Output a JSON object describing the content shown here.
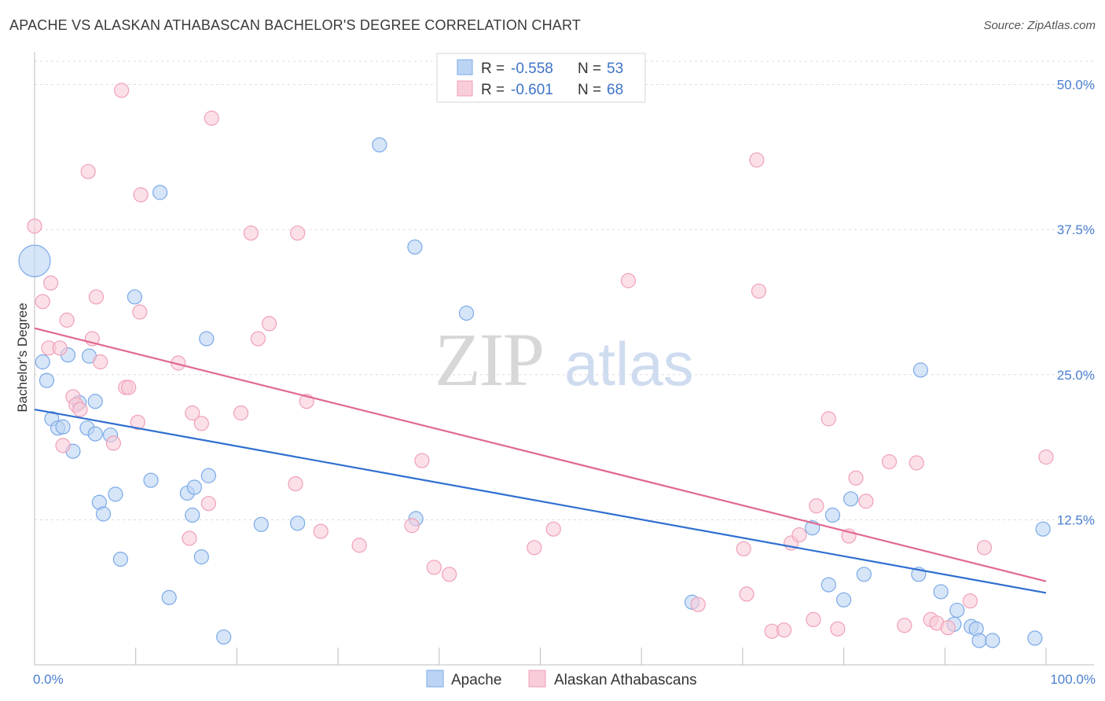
{
  "header": {
    "title": "APACHE VS ALASKAN ATHABASCAN BACHELOR'S DEGREE CORRELATION CHART",
    "source": "Source: ZipAtlas.com"
  },
  "watermark": {
    "zip": "ZIP",
    "atlas": "atlas"
  },
  "stats_legend": {
    "rows": [
      {
        "r_label": "R = ",
        "r_value": "-0.558",
        "n_label": "N = ",
        "n_value": "53"
      },
      {
        "r_label": "R = ",
        "r_value": "-0.601",
        "n_label": "N = ",
        "n_value": "68"
      }
    ]
  },
  "chart_data": {
    "type": "scatter",
    "xlabel": "",
    "ylabel": "Bachelor's Degree",
    "xlim": [
      0,
      100
    ],
    "ylim": [
      0,
      52
    ],
    "x_ticks": [
      {
        "value": 0,
        "label": "0.0%"
      },
      {
        "value": 100,
        "label": "100.0%"
      }
    ],
    "y_ticks": [
      {
        "value": 12.5,
        "label": "12.5%"
      },
      {
        "value": 25,
        "label": "25.0%"
      },
      {
        "value": 37.5,
        "label": "37.5%"
      },
      {
        "value": 50,
        "label": "50.0%"
      }
    ],
    "x_minor_ticks": [
      0,
      10,
      20,
      30,
      40,
      50,
      60,
      70,
      80,
      90,
      100
    ],
    "grid": "horizontal-dashed",
    "legend_position": "bottom-center",
    "series": [
      {
        "name": "Apache",
        "color": "#7aaae8",
        "fill": "#bcd4f4",
        "trend": {
          "x": [
            0,
            100
          ],
          "y": [
            22.0,
            6.2
          ],
          "color": "#2f6fd0"
        },
        "points": [
          {
            "x": 0.0,
            "y": 34.8,
            "big": true
          },
          {
            "x": 0.8,
            "y": 26.1
          },
          {
            "x": 1.2,
            "y": 24.5
          },
          {
            "x": 1.7,
            "y": 21.2
          },
          {
            "x": 2.3,
            "y": 20.4
          },
          {
            "x": 2.8,
            "y": 20.5
          },
          {
            "x": 3.3,
            "y": 26.7
          },
          {
            "x": 3.8,
            "y": 18.4
          },
          {
            "x": 4.4,
            "y": 22.6
          },
          {
            "x": 5.2,
            "y": 20.4
          },
          {
            "x": 5.4,
            "y": 26.6
          },
          {
            "x": 6.0,
            "y": 22.7
          },
          {
            "x": 6.0,
            "y": 19.9
          },
          {
            "x": 6.4,
            "y": 14.0
          },
          {
            "x": 6.8,
            "y": 13.0
          },
          {
            "x": 7.5,
            "y": 19.8
          },
          {
            "x": 8.0,
            "y": 14.7
          },
          {
            "x": 8.5,
            "y": 9.1
          },
          {
            "x": 9.9,
            "y": 31.7
          },
          {
            "x": 11.5,
            "y": 15.9
          },
          {
            "x": 12.4,
            "y": 40.7
          },
          {
            "x": 13.3,
            "y": 5.8
          },
          {
            "x": 15.1,
            "y": 14.8
          },
          {
            "x": 15.6,
            "y": 12.9
          },
          {
            "x": 15.8,
            "y": 15.3
          },
          {
            "x": 16.5,
            "y": 9.3
          },
          {
            "x": 17.0,
            "y": 28.1
          },
          {
            "x": 17.2,
            "y": 16.3
          },
          {
            "x": 18.7,
            "y": 2.4
          },
          {
            "x": 22.4,
            "y": 12.1
          },
          {
            "x": 26.0,
            "y": 12.2
          },
          {
            "x": 34.1,
            "y": 44.8
          },
          {
            "x": 37.6,
            "y": 36.0
          },
          {
            "x": 37.7,
            "y": 12.6
          },
          {
            "x": 42.7,
            "y": 30.3
          },
          {
            "x": 65.0,
            "y": 5.4
          },
          {
            "x": 76.9,
            "y": 11.8
          },
          {
            "x": 78.5,
            "y": 6.9
          },
          {
            "x": 78.9,
            "y": 12.9
          },
          {
            "x": 80.0,
            "y": 5.6
          },
          {
            "x": 80.7,
            "y": 14.3
          },
          {
            "x": 82.0,
            "y": 7.8
          },
          {
            "x": 87.4,
            "y": 7.8
          },
          {
            "x": 87.6,
            "y": 25.4
          },
          {
            "x": 89.6,
            "y": 6.3
          },
          {
            "x": 90.9,
            "y": 3.5
          },
          {
            "x": 91.2,
            "y": 4.7
          },
          {
            "x": 92.6,
            "y": 3.3
          },
          {
            "x": 93.1,
            "y": 3.1
          },
          {
            "x": 93.4,
            "y": 2.1
          },
          {
            "x": 94.7,
            "y": 2.1
          },
          {
            "x": 98.9,
            "y": 2.3
          },
          {
            "x": 99.7,
            "y": 11.7
          }
        ]
      },
      {
        "name": "Alaskan Athabascans",
        "color": "#f0a0b8",
        "fill": "#f9ccd9",
        "trend": {
          "x": [
            0,
            100
          ],
          "y": [
            29.0,
            7.2
          ],
          "color": "#e06890"
        },
        "points": [
          {
            "x": 0.0,
            "y": 37.8
          },
          {
            "x": 0.8,
            "y": 31.3
          },
          {
            "x": 1.4,
            "y": 27.3
          },
          {
            "x": 1.6,
            "y": 32.9
          },
          {
            "x": 2.5,
            "y": 27.3
          },
          {
            "x": 2.8,
            "y": 18.9
          },
          {
            "x": 3.2,
            "y": 29.7
          },
          {
            "x": 3.8,
            "y": 23.1
          },
          {
            "x": 4.1,
            "y": 22.4
          },
          {
            "x": 4.5,
            "y": 22.0
          },
          {
            "x": 5.3,
            "y": 42.5
          },
          {
            "x": 5.7,
            "y": 28.1
          },
          {
            "x": 6.1,
            "y": 31.7
          },
          {
            "x": 6.5,
            "y": 26.1
          },
          {
            "x": 7.8,
            "y": 19.1
          },
          {
            "x": 8.6,
            "y": 49.5
          },
          {
            "x": 9.0,
            "y": 23.9
          },
          {
            "x": 9.3,
            "y": 23.9
          },
          {
            "x": 10.2,
            "y": 20.9
          },
          {
            "x": 10.4,
            "y": 30.4
          },
          {
            "x": 10.5,
            "y": 40.5
          },
          {
            "x": 14.2,
            "y": 26.0
          },
          {
            "x": 15.3,
            "y": 10.9
          },
          {
            "x": 15.6,
            "y": 21.7
          },
          {
            "x": 16.5,
            "y": 20.8
          },
          {
            "x": 17.2,
            "y": 13.9
          },
          {
            "x": 17.5,
            "y": 47.1
          },
          {
            "x": 20.4,
            "y": 21.7
          },
          {
            "x": 21.4,
            "y": 37.2
          },
          {
            "x": 22.1,
            "y": 28.1
          },
          {
            "x": 23.2,
            "y": 29.4
          },
          {
            "x": 25.8,
            "y": 15.6
          },
          {
            "x": 26.0,
            "y": 37.2
          },
          {
            "x": 26.9,
            "y": 22.7
          },
          {
            "x": 28.3,
            "y": 11.5
          },
          {
            "x": 32.1,
            "y": 10.3
          },
          {
            "x": 37.3,
            "y": 12.0
          },
          {
            "x": 38.3,
            "y": 17.6
          },
          {
            "x": 39.5,
            "y": 8.4
          },
          {
            "x": 41.0,
            "y": 7.8
          },
          {
            "x": 49.4,
            "y": 10.1
          },
          {
            "x": 51.3,
            "y": 11.7
          },
          {
            "x": 58.7,
            "y": 33.1
          },
          {
            "x": 65.6,
            "y": 5.2
          },
          {
            "x": 70.1,
            "y": 10.0
          },
          {
            "x": 70.4,
            "y": 6.1
          },
          {
            "x": 71.4,
            "y": 43.5
          },
          {
            "x": 71.6,
            "y": 32.2
          },
          {
            "x": 72.9,
            "y": 2.9
          },
          {
            "x": 74.1,
            "y": 3.0
          },
          {
            "x": 74.8,
            "y": 10.5
          },
          {
            "x": 75.6,
            "y": 11.2
          },
          {
            "x": 77.0,
            "y": 3.9
          },
          {
            "x": 77.3,
            "y": 13.7
          },
          {
            "x": 78.5,
            "y": 21.2
          },
          {
            "x": 79.4,
            "y": 3.1
          },
          {
            "x": 80.5,
            "y": 11.1
          },
          {
            "x": 81.2,
            "y": 16.1
          },
          {
            "x": 82.2,
            "y": 14.1
          },
          {
            "x": 84.5,
            "y": 17.5
          },
          {
            "x": 86.0,
            "y": 3.4
          },
          {
            "x": 87.2,
            "y": 17.4
          },
          {
            "x": 88.6,
            "y": 3.9
          },
          {
            "x": 89.2,
            "y": 3.6
          },
          {
            "x": 90.3,
            "y": 3.2
          },
          {
            "x": 92.5,
            "y": 5.5
          },
          {
            "x": 93.9,
            "y": 10.1
          },
          {
            "x": 100.0,
            "y": 17.9
          }
        ]
      }
    ]
  }
}
